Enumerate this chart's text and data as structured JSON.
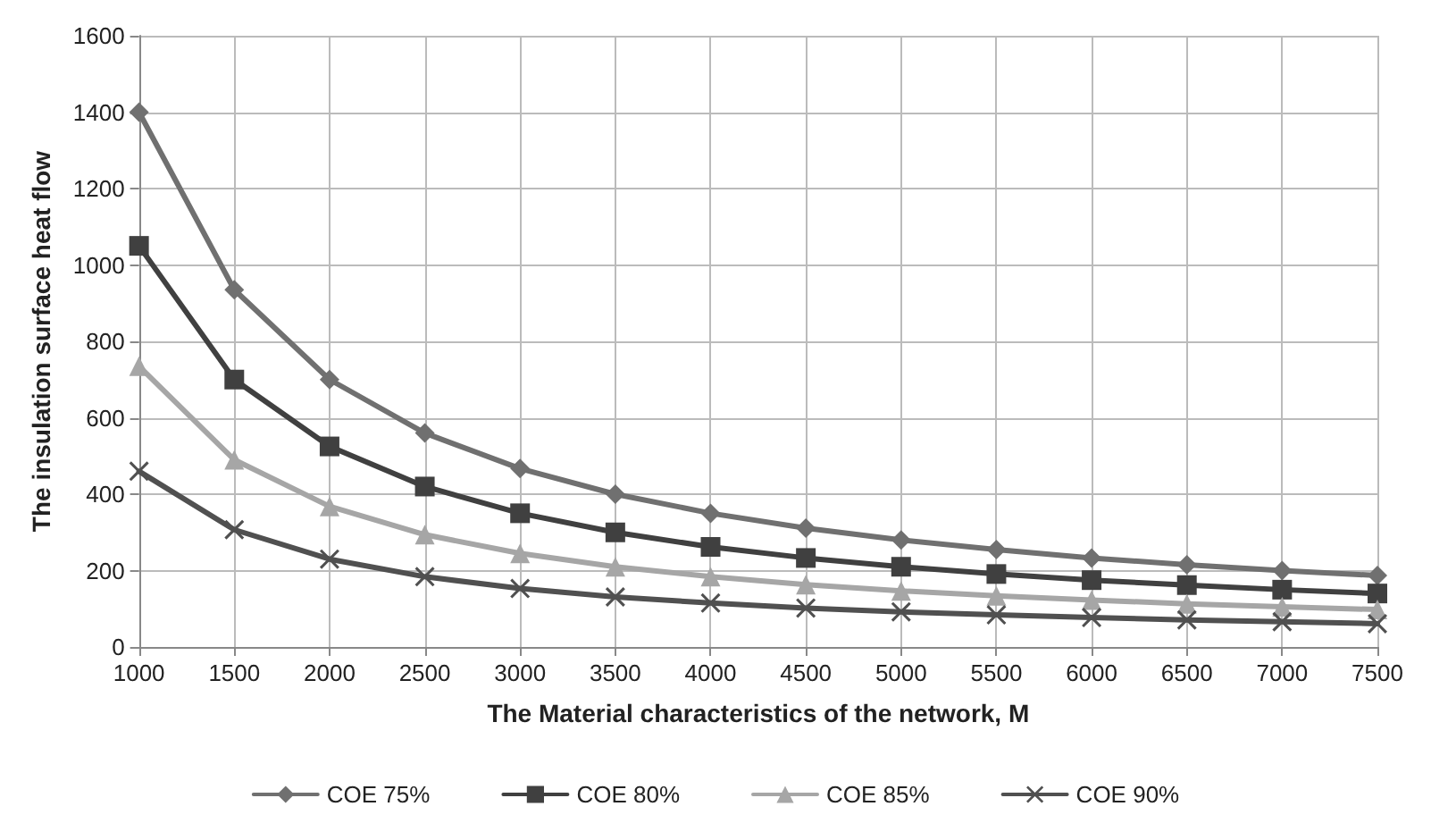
{
  "chart_data": {
    "type": "line",
    "xlabel": "The Material characteristics of the network, M",
    "ylabel": "The insulation surface heat flow",
    "x": [
      1000,
      1500,
      2000,
      2500,
      3000,
      3500,
      4000,
      4500,
      5000,
      5500,
      6000,
      6500,
      7000,
      7500
    ],
    "series": [
      {
        "name": "COE 75%",
        "color": "#707070",
        "marker": "diamond",
        "values": [
          1400,
          935,
          700,
          560,
          467,
          400,
          350,
          311,
          280,
          255,
          233,
          215,
          200,
          187
        ]
      },
      {
        "name": "COE 80%",
        "color": "#404040",
        "marker": "square",
        "values": [
          1050,
          700,
          525,
          420,
          350,
          300,
          262,
          233,
          210,
          191,
          175,
          162,
          150,
          140
        ]
      },
      {
        "name": "COE 85%",
        "color": "#a6a6a6",
        "marker": "triangle",
        "values": [
          735,
          490,
          368,
          294,
          245,
          210,
          184,
          163,
          147,
          134,
          123,
          113,
          105,
          98
        ]
      },
      {
        "name": "COE 90%",
        "color": "#505050",
        "marker": "cross",
        "values": [
          460,
          307,
          230,
          184,
          153,
          131,
          115,
          102,
          92,
          84,
          77,
          71,
          66,
          61
        ]
      }
    ],
    "xlim": [
      1000,
      7500
    ],
    "xticks": [
      1000,
      1500,
      2000,
      2500,
      3000,
      3500,
      4000,
      4500,
      5000,
      5500,
      6000,
      6500,
      7000,
      7500
    ],
    "ylim": [
      0,
      1600
    ],
    "yticks": [
      0,
      200,
      400,
      600,
      800,
      1000,
      1200,
      1400,
      1600
    ],
    "grid": true,
    "legend": "bottom",
    "line_style": "solid"
  }
}
